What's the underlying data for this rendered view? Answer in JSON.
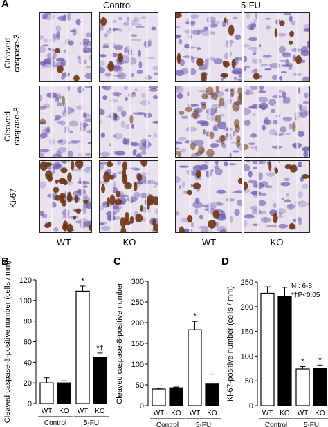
{
  "figure": {
    "panel_a": {
      "letter": "A",
      "groups": [
        "Control",
        "5-FU"
      ],
      "rows": [
        {
          "line1": "Cleaved",
          "line2": "caspase-3",
          "stain": "caspase3"
        },
        {
          "line1": "Cleaved",
          "line2": "caspase-8",
          "stain": "caspase8"
        },
        {
          "line1": "Ki-67",
          "line2": "",
          "stain": "ki67"
        }
      ],
      "columns": [
        "WT",
        "KO",
        "WT",
        "KO"
      ],
      "colors": {
        "hematoxylin": "#6f5fae",
        "dab": "#6b3414",
        "background": "#e9e2ee"
      }
    }
  },
  "chart_data": [
    {
      "type": "bar",
      "letter": "B",
      "ylabel": "Cleaved caspase-3-positive number (cells / mm)",
      "ylim": [
        0,
        120
      ],
      "yticks": [
        0,
        20,
        40,
        60,
        80,
        100,
        120
      ],
      "categories": [
        "WT",
        "KO",
        "WT",
        "KO"
      ],
      "groups": [
        "Control",
        "5-FU"
      ],
      "values": [
        20,
        20,
        109,
        45
      ],
      "errors": [
        5,
        2,
        5,
        4
      ],
      "fills": [
        "#ffffff",
        "#000000",
        "#ffffff",
        "#000000"
      ],
      "annotations": [
        "",
        "",
        "*",
        "*†"
      ]
    },
    {
      "type": "bar",
      "letter": "C",
      "ylabel": "Cleaved caspase-8-positive number",
      "ylim": [
        0,
        300
      ],
      "yticks": [
        0,
        50,
        100,
        150,
        200,
        250,
        300
      ],
      "categories": [
        "WT",
        "KO",
        "WT",
        "KO"
      ],
      "groups": [
        "Control",
        "5-FU"
      ],
      "values": [
        40,
        43,
        183,
        52
      ],
      "errors": [
        2,
        2,
        20,
        7
      ],
      "fills": [
        "#ffffff",
        "#000000",
        "#ffffff",
        "#000000"
      ],
      "annotations": [
        "",
        "",
        "*",
        "†"
      ]
    },
    {
      "type": "bar",
      "letter": "D",
      "ylabel": "Ki-67-positive number (cells / mm)",
      "ylim": [
        0,
        250
      ],
      "yticks": [
        0,
        50,
        100,
        150,
        200,
        250
      ],
      "categories": [
        "WT",
        "KO",
        "WT",
        "KO"
      ],
      "groups": [
        "Control",
        "5-FU"
      ],
      "values": [
        227,
        221,
        74,
        75
      ],
      "errors": [
        13,
        18,
        5,
        7
      ],
      "fills": [
        "#ffffff",
        "#000000",
        "#ffffff",
        "#000000"
      ],
      "annotations": [
        "",
        "",
        "*",
        "*"
      ],
      "legend_lines": [
        "N : 6-8",
        "*†P<0.05"
      ]
    }
  ]
}
